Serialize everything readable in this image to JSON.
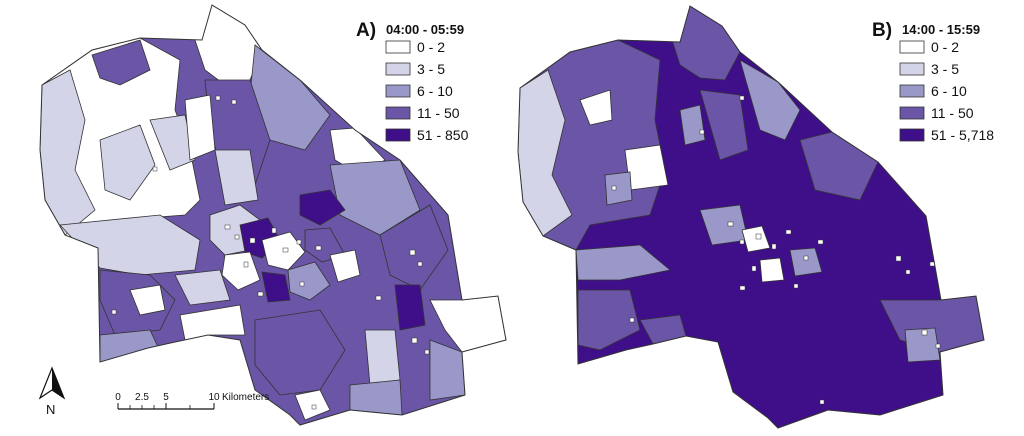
{
  "colors": {
    "class1": "#ffffff",
    "class2": "#d4d4e8",
    "class3": "#9a98c8",
    "class4": "#6a55a6",
    "class5": "#3f0f8a",
    "border": "#333333"
  },
  "maps": [
    {
      "label": "A)",
      "time": "04:00 - 05:59",
      "legend": [
        "0 - 2",
        "3 - 5",
        "6 - 10",
        "11 - 50",
        "51 - 850"
      ]
    },
    {
      "label": "B)",
      "time": "14:00 - 15:59",
      "legend": [
        "0 - 2",
        "3 - 5",
        "6 - 10",
        "11 - 50",
        "51 - 5,718"
      ]
    }
  ],
  "north_arrow": {
    "label": "N"
  },
  "scale_bar": {
    "ticks": [
      "0",
      "2.5",
      "5",
      "10"
    ],
    "unit": "Kilometers"
  }
}
